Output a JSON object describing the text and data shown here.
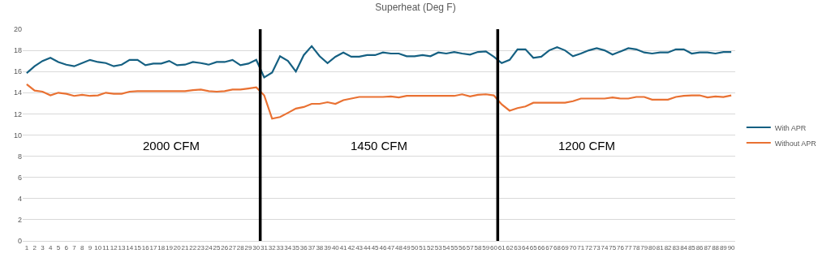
{
  "chart_data": {
    "type": "line",
    "title": "Superheat (Deg F)",
    "x": [
      1,
      2,
      3,
      4,
      5,
      6,
      7,
      8,
      9,
      10,
      11,
      12,
      13,
      14,
      15,
      16,
      17,
      18,
      19,
      20,
      21,
      22,
      23,
      24,
      25,
      26,
      27,
      28,
      29,
      30,
      31,
      32,
      33,
      34,
      35,
      36,
      37,
      38,
      39,
      40,
      41,
      42,
      43,
      44,
      45,
      46,
      47,
      48,
      49,
      50,
      51,
      52,
      53,
      54,
      55,
      56,
      57,
      58,
      59,
      60,
      61,
      62,
      63,
      64,
      65,
      66,
      67,
      68,
      69,
      70,
      71,
      72,
      73,
      74,
      75,
      76,
      77,
      78,
      79,
      80,
      81,
      82,
      83,
      84,
      85,
      86,
      87,
      88,
      89,
      90
    ],
    "xlim": [
      0.5,
      90.5
    ],
    "xticks": [
      1,
      2,
      3,
      4,
      5,
      6,
      7,
      8,
      9,
      10,
      11,
      12,
      13,
      14,
      15,
      16,
      17,
      18,
      19,
      20,
      21,
      22,
      23,
      24,
      25,
      26,
      27,
      28,
      29,
      30,
      31,
      32,
      33,
      34,
      35,
      36,
      37,
      38,
      39,
      40,
      41,
      42,
      43,
      44,
      45,
      46,
      47,
      48,
      49,
      50,
      51,
      52,
      53,
      54,
      55,
      56,
      57,
      58,
      59,
      60,
      61,
      62,
      63,
      64,
      65,
      66,
      67,
      68,
      69,
      70,
      71,
      72,
      73,
      74,
      75,
      76,
      77,
      78,
      79,
      80,
      81,
      82,
      83,
      84,
      85,
      86,
      87,
      88,
      89,
      90
    ],
    "ylim": [
      0,
      20
    ],
    "yticks": [
      0,
      2,
      4,
      6,
      8,
      10,
      12,
      14,
      16,
      18,
      20
    ],
    "grid": "y",
    "legend": "right",
    "marker": "none",
    "line_style": "solid",
    "series": [
      {
        "name": "With APR",
        "color": "#156082",
        "values": [
          15.85,
          16.5,
          17.0,
          17.3,
          16.9,
          16.65,
          16.5,
          16.8,
          17.1,
          16.9,
          16.8,
          16.5,
          16.65,
          17.1,
          17.1,
          16.6,
          16.75,
          16.75,
          17.0,
          16.6,
          16.65,
          16.9,
          16.8,
          16.65,
          16.9,
          16.9,
          17.1,
          16.6,
          16.75,
          17.1,
          15.45,
          15.9,
          17.45,
          17.0,
          16.0,
          17.55,
          18.4,
          17.45,
          16.8,
          17.4,
          17.8,
          17.4,
          17.4,
          17.55,
          17.55,
          17.8,
          17.7,
          17.7,
          17.45,
          17.45,
          17.55,
          17.45,
          17.8,
          17.7,
          17.85,
          17.7,
          17.6,
          17.85,
          17.9,
          17.4,
          16.8,
          17.1,
          18.1,
          18.1,
          17.3,
          17.4,
          18.0,
          18.3,
          18.0,
          17.45,
          17.7,
          18.0,
          18.2,
          18.0,
          17.6,
          17.9,
          18.2,
          18.1,
          17.8,
          17.7,
          17.8,
          17.8,
          18.1,
          18.1,
          17.7,
          17.8,
          17.8,
          17.7,
          17.85,
          17.85
        ]
      },
      {
        "name": "Without APR",
        "color": "#e97132",
        "values": [
          14.8,
          14.2,
          14.1,
          13.75,
          14.0,
          13.9,
          13.7,
          13.8,
          13.7,
          13.75,
          14.0,
          13.9,
          13.9,
          14.1,
          14.15,
          14.15,
          14.15,
          14.15,
          14.15,
          14.15,
          14.15,
          14.25,
          14.3,
          14.15,
          14.1,
          14.15,
          14.3,
          14.3,
          14.4,
          14.5,
          13.75,
          11.55,
          11.7,
          12.1,
          12.5,
          12.65,
          12.95,
          12.95,
          13.1,
          12.95,
          13.3,
          13.45,
          13.6,
          13.6,
          13.6,
          13.6,
          13.65,
          13.55,
          13.7,
          13.7,
          13.7,
          13.7,
          13.7,
          13.7,
          13.7,
          13.85,
          13.65,
          13.8,
          13.85,
          13.75,
          12.9,
          12.3,
          12.55,
          12.7,
          13.05,
          13.05,
          13.05,
          13.05,
          13.05,
          13.2,
          13.45,
          13.45,
          13.45,
          13.45,
          13.55,
          13.45,
          13.45,
          13.6,
          13.6,
          13.35,
          13.35,
          13.35,
          13.6,
          13.7,
          13.75,
          13.75,
          13.55,
          13.65,
          13.6,
          13.75
        ]
      }
    ],
    "ref_lines": [
      {
        "axis": "x",
        "value": 30.5,
        "color": "#000000"
      },
      {
        "axis": "x",
        "value": 60.5,
        "color": "#000000"
      }
    ],
    "annotations": [
      "2000 CFM",
      "1450 CFM",
      "1200 CFM"
    ]
  }
}
